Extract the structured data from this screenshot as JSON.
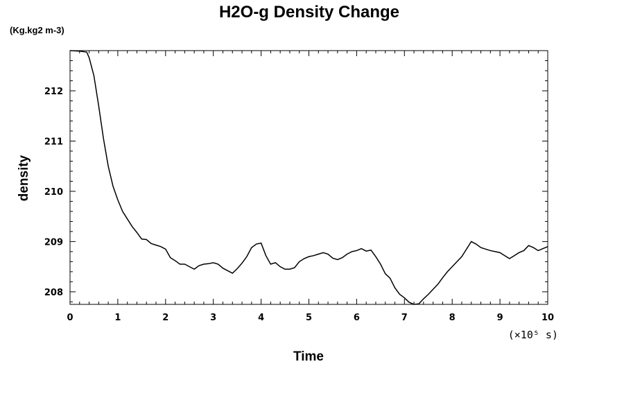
{
  "chart_data": {
    "type": "line",
    "title": "H2O-g Density Change",
    "units_label": "(Kg.kg2 m-3)",
    "xlabel": "Time",
    "ylabel": "density",
    "x_scale_note": "(×10⁵ s)",
    "xlim": [
      0,
      10
    ],
    "ylim": [
      207.75,
      212.8
    ],
    "x_ticks": [
      "0",
      "1",
      "2",
      "3",
      "4",
      "5",
      "6",
      "7",
      "8",
      "9",
      "10"
    ],
    "y_ticks": [
      "208",
      "209",
      "210",
      "211",
      "212"
    ],
    "grid": false,
    "legend": "none",
    "line_color": "#000000",
    "series": [
      {
        "x": [
          0,
          0.2,
          0.35,
          0.4,
          0.5,
          0.6,
          0.7,
          0.8,
          0.9,
          1.0,
          1.1,
          1.2,
          1.3,
          1.4,
          1.5,
          1.6,
          1.7,
          1.8,
          1.9,
          2.0,
          2.1,
          2.2,
          2.3,
          2.4,
          2.5,
          2.6,
          2.7,
          2.8,
          2.9,
          3.0,
          3.1,
          3.2,
          3.3,
          3.4,
          3.5,
          3.6,
          3.7,
          3.8,
          3.9,
          4.0,
          4.1,
          4.2,
          4.3,
          4.4,
          4.5,
          4.6,
          4.7,
          4.8,
          4.9,
          5.0,
          5.1,
          5.2,
          5.3,
          5.4,
          5.5,
          5.6,
          5.7,
          5.8,
          5.9,
          6.0,
          6.1,
          6.2,
          6.3,
          6.4,
          6.5,
          6.6,
          6.7,
          6.8,
          6.9,
          7.0,
          7.1,
          7.2,
          7.3,
          7.4,
          7.5,
          7.6,
          7.7,
          7.8,
          7.9,
          8.0,
          8.1,
          8.2,
          8.3,
          8.4,
          8.5,
          8.6,
          8.7,
          8.8,
          8.9,
          9.0,
          9.1,
          9.2,
          9.3,
          9.4,
          9.5,
          9.6,
          9.7,
          9.8,
          9.9,
          10.0
        ],
        "y": [
          212.8,
          212.79,
          212.77,
          212.66,
          212.3,
          211.7,
          211.05,
          210.5,
          210.1,
          209.83,
          209.6,
          209.45,
          209.3,
          209.18,
          209.05,
          209.04,
          208.96,
          208.93,
          208.9,
          208.85,
          208.68,
          208.62,
          208.55,
          208.55,
          208.5,
          208.45,
          208.52,
          208.55,
          208.56,
          208.58,
          208.55,
          208.47,
          208.42,
          208.37,
          208.46,
          208.57,
          208.7,
          208.88,
          208.95,
          208.97,
          208.72,
          208.55,
          208.58,
          208.5,
          208.45,
          208.45,
          208.48,
          208.6,
          208.66,
          208.7,
          208.72,
          208.75,
          208.78,
          208.75,
          208.67,
          208.64,
          208.68,
          208.75,
          208.8,
          208.82,
          208.86,
          208.81,
          208.83,
          208.7,
          208.55,
          208.36,
          208.27,
          208.08,
          207.95,
          207.88,
          207.79,
          207.74,
          207.76,
          207.86,
          207.95,
          208.05,
          208.15,
          208.28,
          208.4,
          208.5,
          208.6,
          208.7,
          208.85,
          209.0,
          208.95,
          208.88,
          208.85,
          208.82,
          208.8,
          208.78,
          208.72,
          208.66,
          208.72,
          208.78,
          208.82,
          208.92,
          208.88,
          208.82,
          208.86,
          208.9
        ]
      }
    ]
  }
}
